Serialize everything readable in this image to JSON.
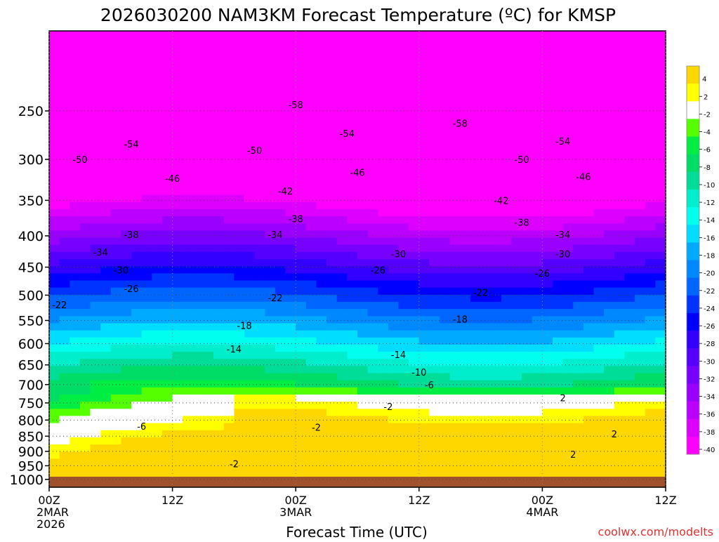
{
  "title": "2026030200 NAM3KM Forecast Temperature (ºC) for KMSP",
  "credit": "coolwx.com/modelts",
  "chart_data": {
    "type": "heatmap",
    "title": "2026030200 NAM3KM Forecast Temperature (ºC) for KMSP",
    "xlabel": "Forecast Time (UTC)",
    "ylabel": "",
    "x_ticks": [
      {
        "label": "00Z",
        "sub": [
          "2MAR",
          "2026"
        ],
        "hour": 0
      },
      {
        "label": "12Z",
        "sub": [],
        "hour": 12
      },
      {
        "label": "00Z",
        "sub": [
          "3MAR"
        ],
        "hour": 24
      },
      {
        "label": "12Z",
        "sub": [],
        "hour": 36
      },
      {
        "label": "00Z",
        "sub": [
          "4MAR"
        ],
        "hour": 48
      },
      {
        "label": "12Z",
        "sub": [],
        "hour": 60
      }
    ],
    "xlim": [
      0,
      60
    ],
    "y_ticks": [
      250,
      300,
      350,
      400,
      450,
      500,
      550,
      600,
      650,
      700,
      750,
      800,
      850,
      900,
      950,
      1000
    ],
    "ylim": [
      1030,
      185
    ],
    "y_scale": "log",
    "colorbar_levels": [
      4,
      2,
      -2,
      -4,
      -6,
      -8,
      -10,
      -12,
      -14,
      -16,
      -18,
      -20,
      -22,
      -24,
      -26,
      -28,
      -30,
      -32,
      -34,
      -36,
      -38,
      -40
    ],
    "colorbar_colors": [
      "#ffd700",
      "#ffff00",
      "#ffffff",
      "#55ff00",
      "#00ee44",
      "#00dd66",
      "#00dd99",
      "#00eecc",
      "#00ffee",
      "#00ddff",
      "#00aaff",
      "#0088ff",
      "#0066ff",
      "#0033ff",
      "#0000ff",
      "#3300ff",
      "#5500ff",
      "#7700ff",
      "#9900ff",
      "#bb00ff",
      "#dd00ff",
      "#ff00ff"
    ],
    "contour_labels": [
      {
        "text": "-58",
        "hour": 24,
        "p": 244
      },
      {
        "text": "-58",
        "hour": 40,
        "p": 262
      },
      {
        "text": "-54",
        "hour": 8,
        "p": 283
      },
      {
        "text": "-54",
        "hour": 29,
        "p": 272
      },
      {
        "text": "-54",
        "hour": 50,
        "p": 280
      },
      {
        "text": "-50",
        "hour": 3,
        "p": 300
      },
      {
        "text": "-50",
        "hour": 20,
        "p": 290
      },
      {
        "text": "-50",
        "hour": 46,
        "p": 300
      },
      {
        "text": "-46",
        "hour": 12,
        "p": 322
      },
      {
        "text": "-46",
        "hour": 30,
        "p": 315
      },
      {
        "text": "-46",
        "hour": 52,
        "p": 320
      },
      {
        "text": "-42",
        "hour": 23,
        "p": 338
      },
      {
        "text": "-42",
        "hour": 44,
        "p": 350
      },
      {
        "text": "-38",
        "hour": 8,
        "p": 398
      },
      {
        "text": "-38",
        "hour": 24,
        "p": 375
      },
      {
        "text": "-38",
        "hour": 46,
        "p": 380
      },
      {
        "text": "-34",
        "hour": 5,
        "p": 425
      },
      {
        "text": "-34",
        "hour": 22,
        "p": 398
      },
      {
        "text": "-34",
        "hour": 50,
        "p": 398
      },
      {
        "text": "-30",
        "hour": 7,
        "p": 455
      },
      {
        "text": "-30",
        "hour": 34,
        "p": 428
      },
      {
        "text": "-30",
        "hour": 50,
        "p": 428
      },
      {
        "text": "-26",
        "hour": 8,
        "p": 488
      },
      {
        "text": "-26",
        "hour": 32,
        "p": 455
      },
      {
        "text": "-26",
        "hour": 48,
        "p": 460
      },
      {
        "text": "-22",
        "hour": 1,
        "p": 518
      },
      {
        "text": "-22",
        "hour": 22,
        "p": 505
      },
      {
        "text": "-22",
        "hour": 42,
        "p": 495
      },
      {
        "text": "-18",
        "hour": 19,
        "p": 560
      },
      {
        "text": "-18",
        "hour": 40,
        "p": 547
      },
      {
        "text": "-14",
        "hour": 18,
        "p": 612
      },
      {
        "text": "-14",
        "hour": 34,
        "p": 625
      },
      {
        "text": "-10",
        "hour": 36,
        "p": 668
      },
      {
        "text": "-6",
        "hour": 37,
        "p": 700
      },
      {
        "text": "-6",
        "hour": 9,
        "p": 818
      },
      {
        "text": "-2",
        "hour": 33,
        "p": 760
      },
      {
        "text": "-2",
        "hour": 26,
        "p": 822
      },
      {
        "text": "-2",
        "hour": 18,
        "p": 943
      },
      {
        "text": "2",
        "hour": 50,
        "p": 735
      },
      {
        "text": "2",
        "hour": 55,
        "p": 843
      },
      {
        "text": "2",
        "hour": 51,
        "p": 910
      }
    ]
  },
  "axis_labels": {
    "p1000": "1000"
  }
}
